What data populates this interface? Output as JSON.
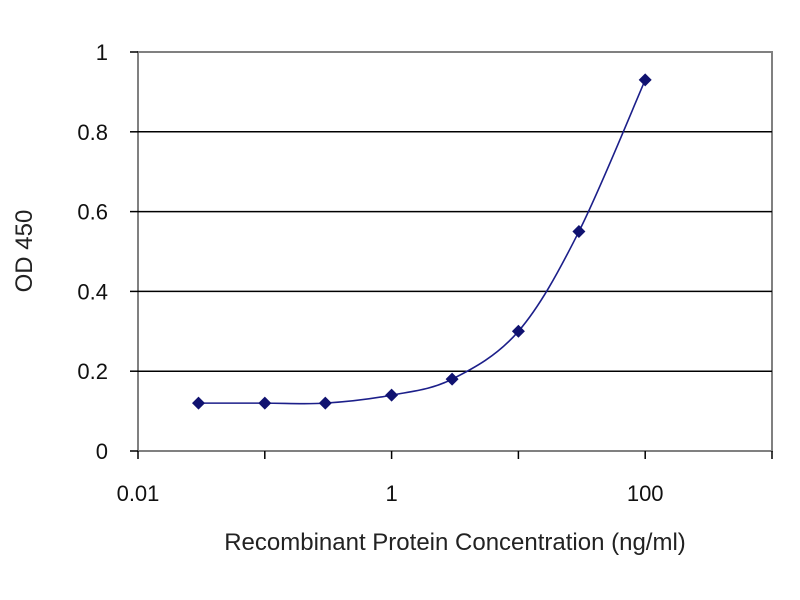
{
  "chart_data": {
    "type": "line",
    "title": "",
    "xlabel": "Recombinant Protein Concentration (ng/ml)",
    "ylabel": "OD 450",
    "x_scale": "log10",
    "xlim": [
      0.01,
      1000
    ],
    "ylim": [
      0,
      1
    ],
    "x_ticks": [
      0.01,
      1,
      100
    ],
    "x_tick_labels": [
      "0.01",
      "1",
      "100"
    ],
    "y_ticks": [
      0,
      0.2,
      0.4,
      0.6,
      0.8,
      1
    ],
    "y_tick_labels": [
      "0",
      "0.2",
      "0.4",
      "0.6",
      "0.8",
      "1"
    ],
    "grid": "horizontal",
    "legend": "none",
    "series": [
      {
        "x": [
          0.03,
          0.1,
          0.3,
          1,
          3,
          10,
          30,
          100
        ],
        "y": [
          0.12,
          0.12,
          0.12,
          0.14,
          0.18,
          0.3,
          0.55,
          0.93
        ],
        "color": "#1c1f8a"
      }
    ]
  }
}
